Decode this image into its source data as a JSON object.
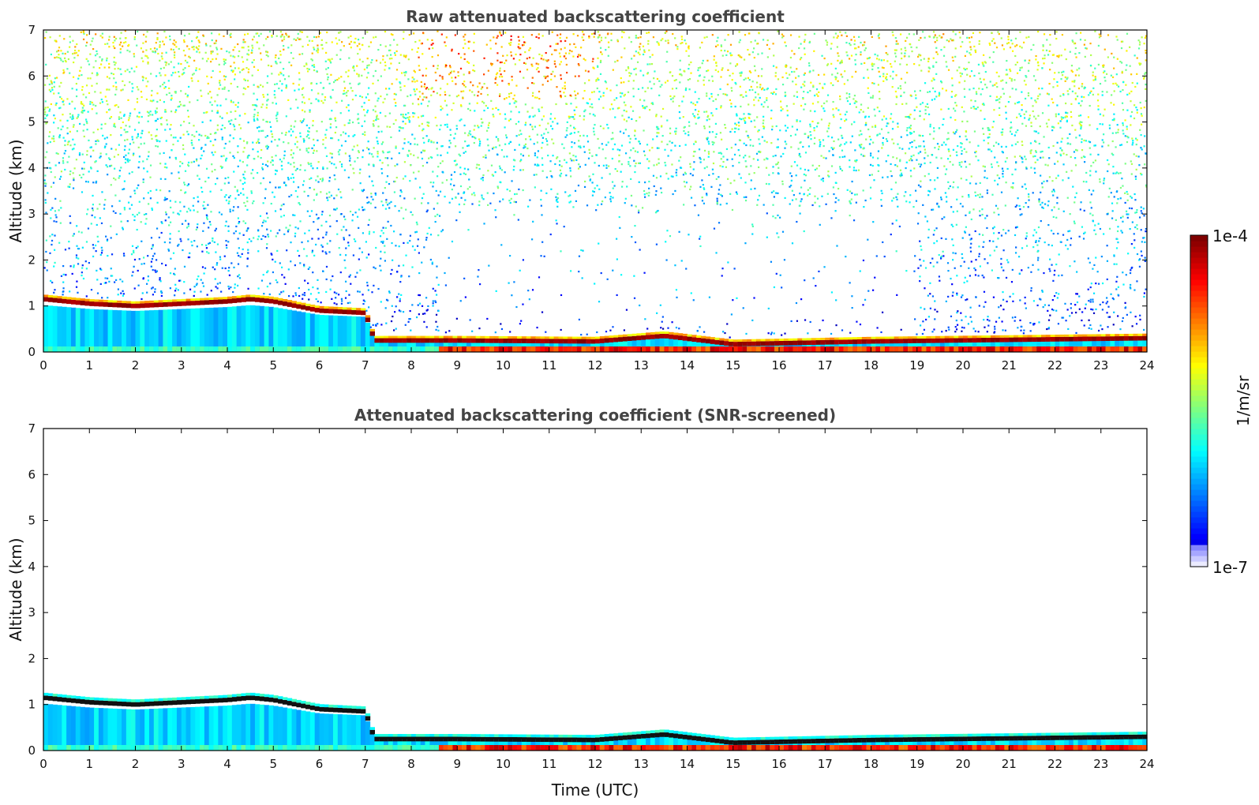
{
  "colors": {
    "accent_blue": "#1f5cff",
    "accent_dark_red": "#8b0000",
    "text": "#111111",
    "title_text": "#444444"
  },
  "chart_data": [
    {
      "type": "heatmap",
      "title": "Raw attenuated backscattering coefficient",
      "xlabel": "",
      "ylabel": "Altitude (km)",
      "xlim": [
        0,
        24
      ],
      "ylim": [
        0,
        7
      ],
      "xticks": [
        0,
        1,
        2,
        3,
        4,
        5,
        6,
        7,
        8,
        9,
        10,
        11,
        12,
        13,
        14,
        15,
        16,
        17,
        18,
        19,
        20,
        21,
        22,
        23,
        24
      ],
      "yticks": [
        0,
        1,
        2,
        3,
        4,
        5,
        6,
        7
      ],
      "variant": "raw",
      "boundary_layer_top_km": [
        {
          "t": 0,
          "z": 1.2
        },
        {
          "t": 1,
          "z": 1.1
        },
        {
          "t": 2,
          "z": 1.05
        },
        {
          "t": 3,
          "z": 1.1
        },
        {
          "t": 4,
          "z": 1.15
        },
        {
          "t": 4.5,
          "z": 1.2
        },
        {
          "t": 5,
          "z": 1.15
        },
        {
          "t": 6,
          "z": 0.95
        },
        {
          "t": 7,
          "z": 0.9
        },
        {
          "t": 7.2,
          "z": 0.3
        },
        {
          "t": 9,
          "z": 0.3
        },
        {
          "t": 12,
          "z": 0.28
        },
        {
          "t": 13.5,
          "z": 0.4
        },
        {
          "t": 15,
          "z": 0.22
        },
        {
          "t": 18,
          "z": 0.28
        },
        {
          "t": 24,
          "z": 0.35
        }
      ]
    },
    {
      "type": "heatmap",
      "title": "Attenuated backscattering coefficient (SNR-screened)",
      "xlabel": "Time (UTC)",
      "ylabel": "Altitude (km)",
      "xlim": [
        0,
        24
      ],
      "ylim": [
        0,
        7
      ],
      "xticks": [
        0,
        1,
        2,
        3,
        4,
        5,
        6,
        7,
        8,
        9,
        10,
        11,
        12,
        13,
        14,
        15,
        16,
        17,
        18,
        19,
        20,
        21,
        22,
        23,
        24
      ],
      "yticks": [
        0,
        1,
        2,
        3,
        4,
        5,
        6,
        7
      ],
      "variant": "screened",
      "boundary_layer_top_km": [
        {
          "t": 0,
          "z": 1.2
        },
        {
          "t": 1,
          "z": 1.1
        },
        {
          "t": 2,
          "z": 1.05
        },
        {
          "t": 3,
          "z": 1.1
        },
        {
          "t": 4,
          "z": 1.15
        },
        {
          "t": 4.5,
          "z": 1.2
        },
        {
          "t": 5,
          "z": 1.15
        },
        {
          "t": 6,
          "z": 0.95
        },
        {
          "t": 7,
          "z": 0.9
        },
        {
          "t": 7.2,
          "z": 0.3
        },
        {
          "t": 9,
          "z": 0.3
        },
        {
          "t": 12,
          "z": 0.28
        },
        {
          "t": 13.5,
          "z": 0.4
        },
        {
          "t": 15,
          "z": 0.22
        },
        {
          "t": 18,
          "z": 0.28
        },
        {
          "t": 24,
          "z": 0.35
        }
      ]
    }
  ],
  "colorbar": {
    "label": "1/m/sr",
    "max_label": "1e-4",
    "min_label": "1e-7",
    "scale": "log",
    "range": [
      1e-07,
      0.0001
    ],
    "colormap": "jet"
  }
}
